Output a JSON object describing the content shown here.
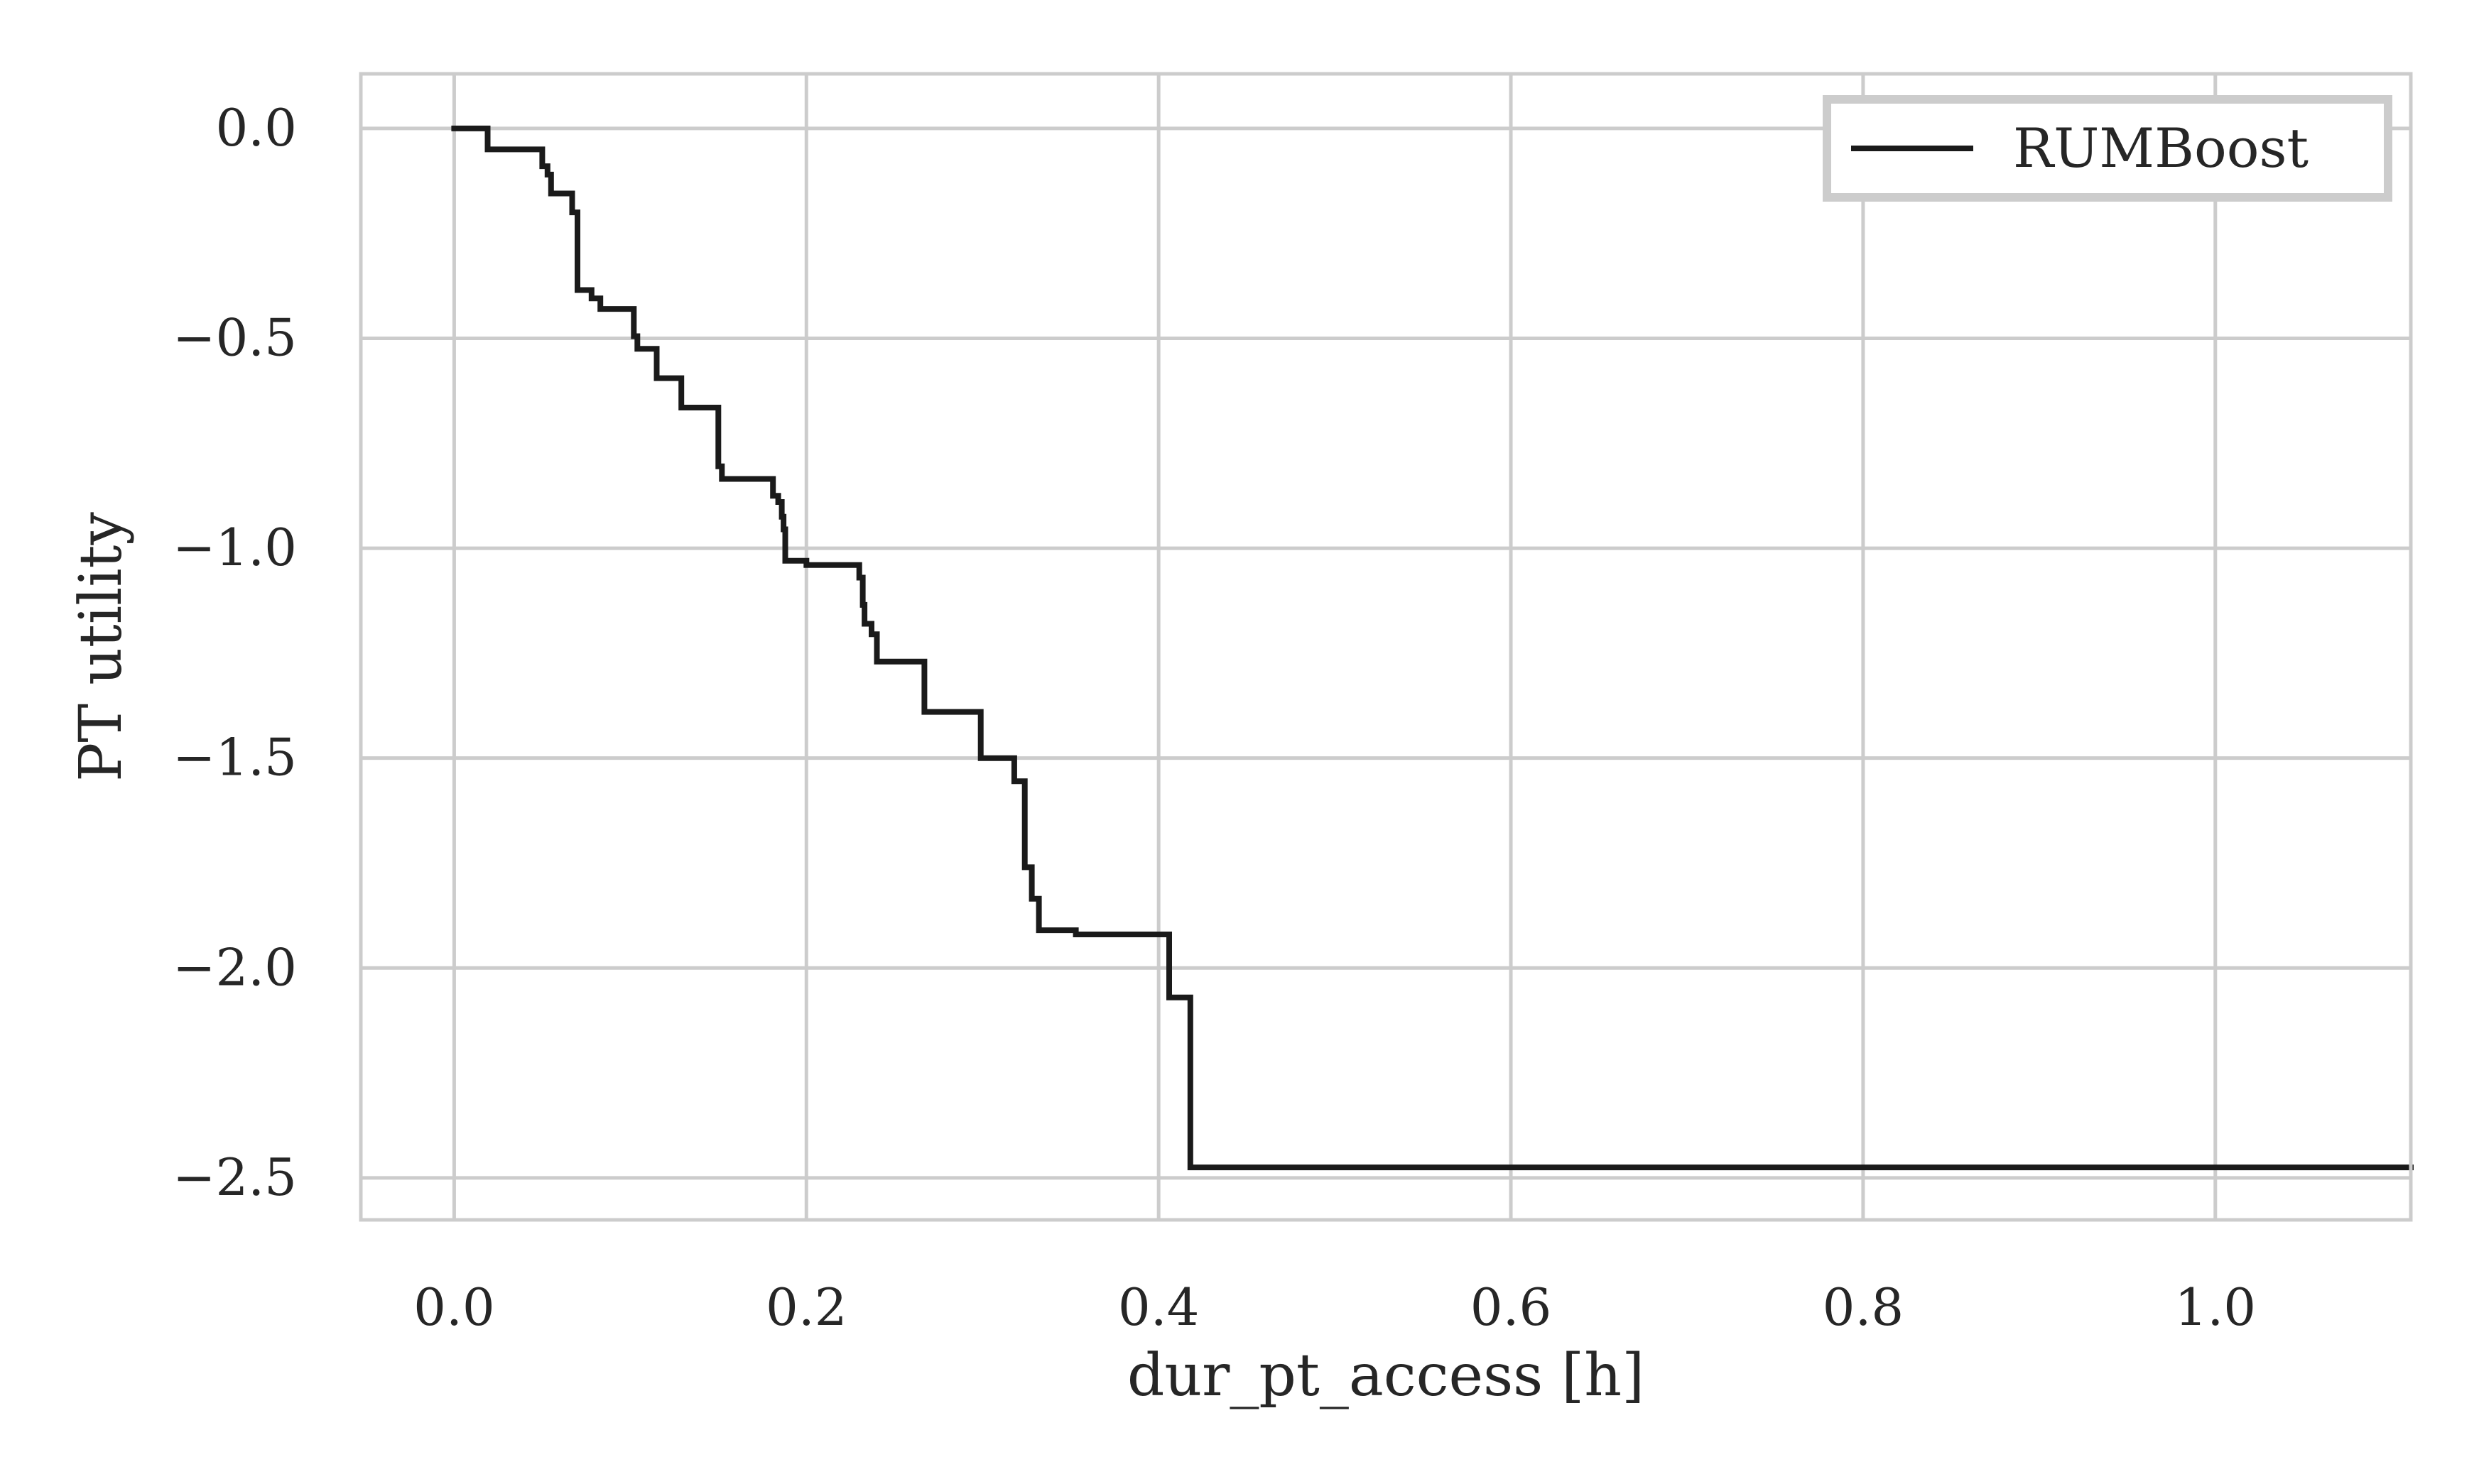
{
  "chart_data": {
    "type": "line",
    "title": "",
    "xlabel": "dur_pt_access [h]",
    "ylabel": "PT utility",
    "xlim": [
      -0.053,
      1.111
    ],
    "ylim": [
      -2.6,
      0.13
    ],
    "xticks": [
      0.0,
      0.2,
      0.4,
      0.6,
      0.8,
      1.0
    ],
    "yticks": [
      0.0,
      -0.5,
      -1.0,
      -1.5,
      -2.0,
      -2.5
    ],
    "xtick_labels": [
      "0.0",
      "0.2",
      "0.4",
      "0.6",
      "0.8",
      "1.0"
    ],
    "ytick_labels": [
      "0.0",
      "−0.5",
      "−1.0",
      "−1.5",
      "−2.0",
      "−2.5"
    ],
    "grid": true,
    "legend": {
      "position": "top-right"
    },
    "series": [
      {
        "name": "RUMBoost",
        "color": "#1a1a1a",
        "step": "post",
        "points": [
          [
            0.0,
            0.0
          ],
          [
            0.019,
            -0.05
          ],
          [
            0.05,
            -0.09
          ],
          [
            0.053,
            -0.11
          ],
          [
            0.055,
            -0.155
          ],
          [
            0.067,
            -0.2
          ],
          [
            0.07,
            -0.385
          ],
          [
            0.078,
            -0.405
          ],
          [
            0.083,
            -0.43
          ],
          [
            0.102,
            -0.495
          ],
          [
            0.104,
            -0.525
          ],
          [
            0.115,
            -0.595
          ],
          [
            0.129,
            -0.665
          ],
          [
            0.15,
            -0.805
          ],
          [
            0.152,
            -0.835
          ],
          [
            0.181,
            -0.875
          ],
          [
            0.184,
            -0.89
          ],
          [
            0.186,
            -0.925
          ],
          [
            0.187,
            -0.955
          ],
          [
            0.188,
            -1.03
          ],
          [
            0.2,
            -1.04
          ],
          [
            0.23,
            -1.07
          ],
          [
            0.232,
            -1.135
          ],
          [
            0.233,
            -1.18
          ],
          [
            0.237,
            -1.205
          ],
          [
            0.24,
            -1.27
          ],
          [
            0.267,
            -1.39
          ],
          [
            0.299,
            -1.5
          ],
          [
            0.318,
            -1.555
          ],
          [
            0.324,
            -1.76
          ],
          [
            0.328,
            -1.835
          ],
          [
            0.332,
            -1.91
          ],
          [
            0.353,
            -1.92
          ],
          [
            0.406,
            -2.07
          ],
          [
            0.418,
            -2.475
          ],
          [
            1.111,
            -2.475
          ]
        ]
      }
    ]
  }
}
